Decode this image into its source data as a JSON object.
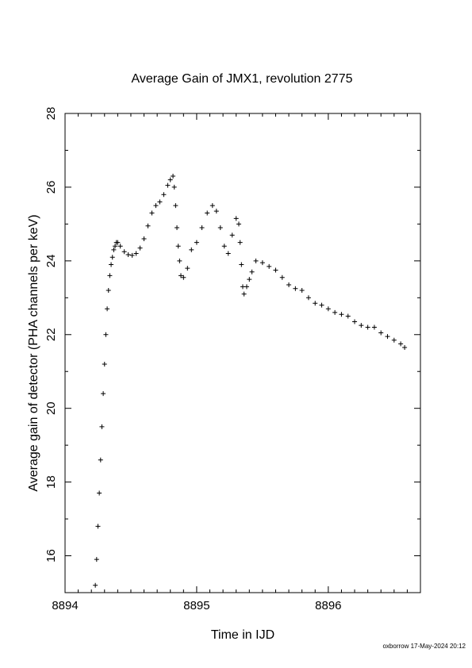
{
  "chart_data": {
    "type": "scatter",
    "title": "Average Gain of JMX1, revolution 2775",
    "xlabel": "Time in IJD",
    "ylabel": "Average gain of detector (PHA channels per keV)",
    "xlim": [
      8894.0,
      8896.7
    ],
    "ylim": [
      15.0,
      28.0
    ],
    "x_ticks": [
      8894,
      8895,
      8896
    ],
    "y_ticks": [
      16,
      18,
      20,
      22,
      24,
      26,
      28
    ],
    "grid": false,
    "marker": "plus",
    "series": [
      {
        "x": [
          8894.23,
          8894.24,
          8894.25,
          8894.26,
          8894.27,
          8894.28,
          8894.29,
          8894.3,
          8894.31,
          8894.32,
          8894.33,
          8894.34,
          8894.35,
          8894.36,
          8894.37,
          8894.38,
          8894.39,
          8894.4,
          8894.42,
          8894.45,
          8894.48,
          8894.51,
          8894.54,
          8894.57,
          8894.6,
          8894.63,
          8894.66,
          8894.69,
          8894.72,
          8894.75,
          8894.78,
          8894.8,
          8894.82,
          8894.83,
          8894.84,
          8894.85,
          8894.86,
          8894.87,
          8894.88,
          8894.9,
          8894.93,
          8894.96,
          8895.0,
          8895.04,
          8895.08,
          8895.12,
          8895.15,
          8895.18,
          8895.21,
          8895.24,
          8895.27,
          8895.3,
          8895.32,
          8895.33,
          8895.34,
          8895.35,
          8895.36,
          8895.38,
          8895.4,
          8895.42,
          8895.45,
          8895.5,
          8895.55,
          8895.6,
          8895.65,
          8895.7,
          8895.75,
          8895.8,
          8895.85,
          8895.9,
          8895.95,
          8896.0,
          8896.05,
          8896.1,
          8896.15,
          8896.2,
          8896.25,
          8896.3,
          8896.35,
          8896.4,
          8896.45,
          8896.5,
          8896.55,
          8896.58
        ],
        "y": [
          15.2,
          15.9,
          16.8,
          17.7,
          18.6,
          19.5,
          20.4,
          21.2,
          22.0,
          22.7,
          23.2,
          23.6,
          23.9,
          24.1,
          24.3,
          24.4,
          24.5,
          24.5,
          24.4,
          24.25,
          24.17,
          24.15,
          24.2,
          24.35,
          24.6,
          24.95,
          25.3,
          25.5,
          25.6,
          25.8,
          26.05,
          26.2,
          26.3,
          26.0,
          25.5,
          24.9,
          24.4,
          24.0,
          23.6,
          23.55,
          23.8,
          24.3,
          24.5,
          24.9,
          25.3,
          25.5,
          25.35,
          24.9,
          24.4,
          24.2,
          24.7,
          25.15,
          25.0,
          24.5,
          23.9,
          23.3,
          23.1,
          23.3,
          23.5,
          23.7,
          24.0,
          23.95,
          23.85,
          23.75,
          23.55,
          23.35,
          23.25,
          23.2,
          23.0,
          22.85,
          22.8,
          22.7,
          22.6,
          22.55,
          22.5,
          22.35,
          22.25,
          22.2,
          22.2,
          22.05,
          21.95,
          21.85,
          21.75,
          21.65
        ]
      }
    ]
  },
  "footer": "oxborrow 17-May-2024 20:12"
}
